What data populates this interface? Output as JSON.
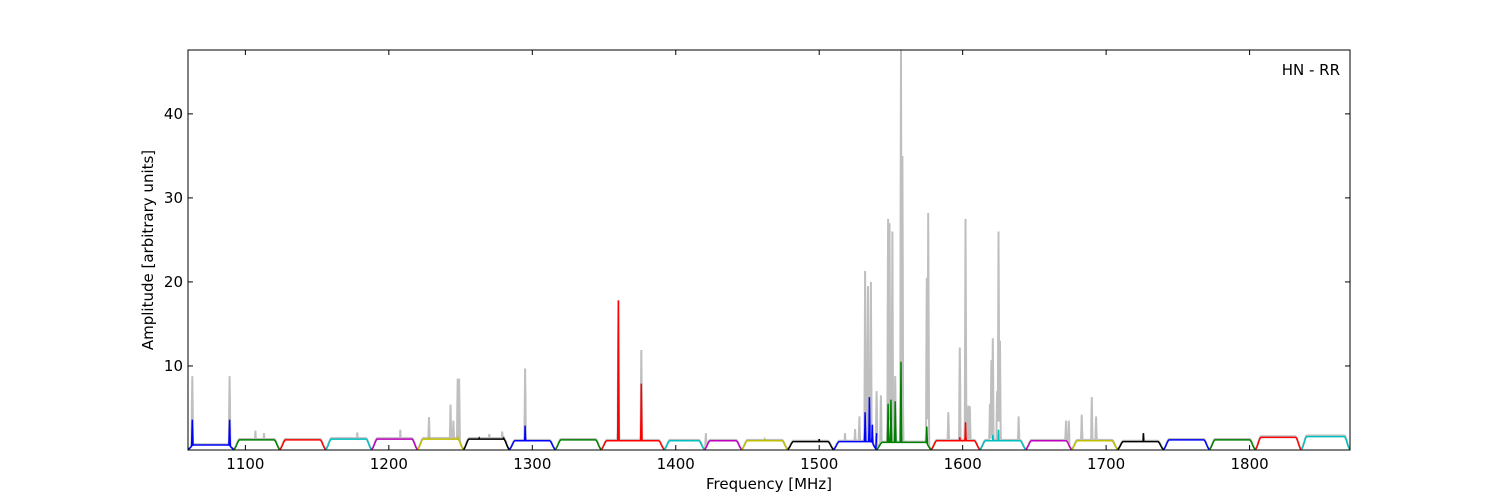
{
  "chart_data": {
    "type": "line",
    "xlabel": "Frequency [MHz]",
    "ylabel": "Amplitude [arbitrary units]",
    "annotation": "HN - RR",
    "xlim": [
      1060,
      1870
    ],
    "ylim": [
      0,
      47.6
    ],
    "xticks": [
      1100,
      1200,
      1300,
      1400,
      1500,
      1600,
      1700,
      1800
    ],
    "yticks": [
      10,
      20,
      30,
      40
    ],
    "grid": false,
    "background_trace_color": "#bfbfbf",
    "segments": [
      {
        "start": 1060,
        "end": 1092,
        "color": "#0000ff",
        "level": 0.6,
        "peaks": [
          [
            1063,
            3.6
          ],
          [
            1076,
            0.5
          ],
          [
            1089,
            3.6
          ]
        ]
      },
      {
        "start": 1092,
        "end": 1124,
        "color": "#008000",
        "level": 1.2,
        "peaks": []
      },
      {
        "start": 1124,
        "end": 1156,
        "color": "#ff0000",
        "level": 1.2,
        "peaks": []
      },
      {
        "start": 1156,
        "end": 1188,
        "color": "#00bfbf",
        "level": 1.3,
        "peaks": []
      },
      {
        "start": 1188,
        "end": 1220,
        "color": "#bf00bf",
        "level": 1.3,
        "peaks": []
      },
      {
        "start": 1220,
        "end": 1252,
        "color": "#bfbf00",
        "level": 1.3,
        "peaks": [
          [
            1228,
            1.5
          ],
          [
            1248,
            1.6
          ]
        ]
      },
      {
        "start": 1252,
        "end": 1284,
        "color": "#000000",
        "level": 1.3,
        "peaks": [
          [
            1263,
            1.4
          ],
          [
            1280,
            1.5
          ]
        ]
      },
      {
        "start": 1284,
        "end": 1316,
        "color": "#0000ff",
        "level": 1.1,
        "peaks": [
          [
            1295,
            2.9
          ]
        ]
      },
      {
        "start": 1316,
        "end": 1348,
        "color": "#008000",
        "level": 1.2,
        "peaks": []
      },
      {
        "start": 1348,
        "end": 1392,
        "color": "#ff0000",
        "level": 1.1,
        "peaks": [
          [
            1360,
            17.8
          ],
          [
            1376,
            7.9
          ]
        ]
      },
      {
        "start": 1392,
        "end": 1420,
        "color": "#00bfbf",
        "level": 1.1,
        "peaks": []
      },
      {
        "start": 1420,
        "end": 1446,
        "color": "#bf00bf",
        "level": 1.1,
        "peaks": []
      },
      {
        "start": 1446,
        "end": 1478,
        "color": "#bfbf00",
        "level": 1.1,
        "peaks": [
          [
            1462,
            1.3
          ]
        ]
      },
      {
        "start": 1478,
        "end": 1510,
        "color": "#000000",
        "level": 1.0,
        "peaks": [
          [
            1500,
            1.3
          ]
        ]
      },
      {
        "start": 1510,
        "end": 1540,
        "color": "#0000ff",
        "level": 1.0,
        "peaks": [
          [
            1532,
            4.5
          ],
          [
            1535,
            6.3
          ],
          [
            1537,
            3
          ],
          [
            1540,
            2
          ]
        ]
      },
      {
        "start": 1540,
        "end": 1578,
        "color": "#008000",
        "level": 0.9,
        "peaks": [
          [
            1548,
            5.5
          ],
          [
            1550,
            6
          ],
          [
            1553,
            5.8
          ],
          [
            1557,
            10.5
          ],
          [
            1575,
            2.8
          ]
        ]
      },
      {
        "start": 1578,
        "end": 1612,
        "color": "#ff0000",
        "level": 1.1,
        "peaks": [
          [
            1598,
            1.5
          ],
          [
            1602,
            3.3
          ]
        ]
      },
      {
        "start": 1612,
        "end": 1644,
        "color": "#00bfbf",
        "level": 1.1,
        "peaks": [
          [
            1621,
            1.8
          ],
          [
            1625,
            2.4
          ]
        ]
      },
      {
        "start": 1644,
        "end": 1676,
        "color": "#bf00bf",
        "level": 1.1,
        "peaks": []
      },
      {
        "start": 1676,
        "end": 1708,
        "color": "#bfbf00",
        "level": 1.1,
        "peaks": []
      },
      {
        "start": 1708,
        "end": 1740,
        "color": "#000000",
        "level": 1.0,
        "peaks": [
          [
            1726,
            2.0
          ]
        ]
      },
      {
        "start": 1740,
        "end": 1772,
        "color": "#0000ff",
        "level": 1.2,
        "peaks": []
      },
      {
        "start": 1772,
        "end": 1804,
        "color": "#008000",
        "level": 1.2,
        "peaks": []
      },
      {
        "start": 1804,
        "end": 1836,
        "color": "#ff0000",
        "level": 1.5,
        "peaks": []
      },
      {
        "start": 1836,
        "end": 1870,
        "color": "#00bfbf",
        "level": 1.6,
        "peaks": []
      }
    ],
    "background_peaks": [
      [
        1063,
        8.8
      ],
      [
        1089,
        8.8
      ],
      [
        1107,
        2.3
      ],
      [
        1113,
        2.0
      ],
      [
        1178,
        2.1
      ],
      [
        1208,
        2.4
      ],
      [
        1228,
        3.9
      ],
      [
        1243,
        5.4
      ],
      [
        1245,
        3.5
      ],
      [
        1248,
        8.5
      ],
      [
        1249,
        8.5
      ],
      [
        1270,
        1.9
      ],
      [
        1279,
        2.2
      ],
      [
        1295,
        9.7
      ],
      [
        1376,
        11.9
      ],
      [
        1421,
        2.0
      ],
      [
        1518,
        2.0
      ],
      [
        1525,
        2.5
      ],
      [
        1528,
        4.0
      ],
      [
        1532,
        21.3
      ],
      [
        1534,
        19.5
      ],
      [
        1536,
        20
      ],
      [
        1540,
        7
      ],
      [
        1543,
        6.5
      ],
      [
        1548,
        27.5
      ],
      [
        1549,
        27
      ],
      [
        1551,
        26
      ],
      [
        1553,
        8.8
      ],
      [
        1557,
        47.6
      ],
      [
        1558,
        35
      ],
      [
        1575,
        20.5
      ],
      [
        1576,
        28.2
      ],
      [
        1590,
        4.5
      ],
      [
        1598,
        12.2
      ],
      [
        1602,
        27.5
      ],
      [
        1604,
        5.3
      ],
      [
        1605,
        5.2
      ],
      [
        1619,
        5.5
      ],
      [
        1620,
        10.7
      ],
      [
        1621,
        13.3
      ],
      [
        1624,
        7
      ],
      [
        1625,
        26
      ],
      [
        1626,
        13
      ],
      [
        1639,
        4
      ],
      [
        1672,
        3.5
      ],
      [
        1674,
        3.5
      ],
      [
        1683,
        4.2
      ],
      [
        1690,
        6.3
      ],
      [
        1693,
        4
      ]
    ]
  }
}
